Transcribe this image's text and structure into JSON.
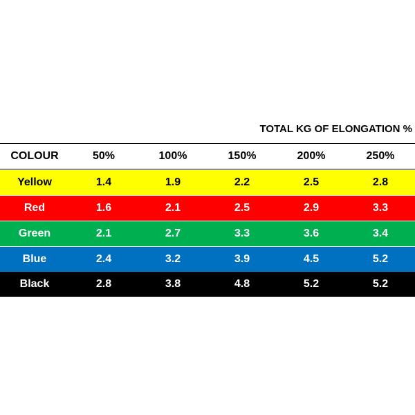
{
  "title": "TOTAL KG OF ELONGATION %",
  "table": {
    "header": [
      "COLOUR",
      "50%",
      "100%",
      "150%",
      "200%",
      "250%"
    ],
    "rows": [
      [
        "Yellow",
        "1.4",
        "1.9",
        "2.2",
        "2.5",
        "2.8"
      ],
      [
        "Red",
        "1.6",
        "2.1",
        "2.5",
        "2.9",
        "3.3"
      ],
      [
        "Green",
        "2.1",
        "2.7",
        "3.3",
        "3.6",
        "3.4"
      ],
      [
        "Blue",
        "2.4",
        "3.2",
        "3.9",
        "4.5",
        "5.2"
      ],
      [
        "Black",
        "2.8",
        "3.8",
        "4.8",
        "5.2",
        "5.2"
      ]
    ]
  }
}
